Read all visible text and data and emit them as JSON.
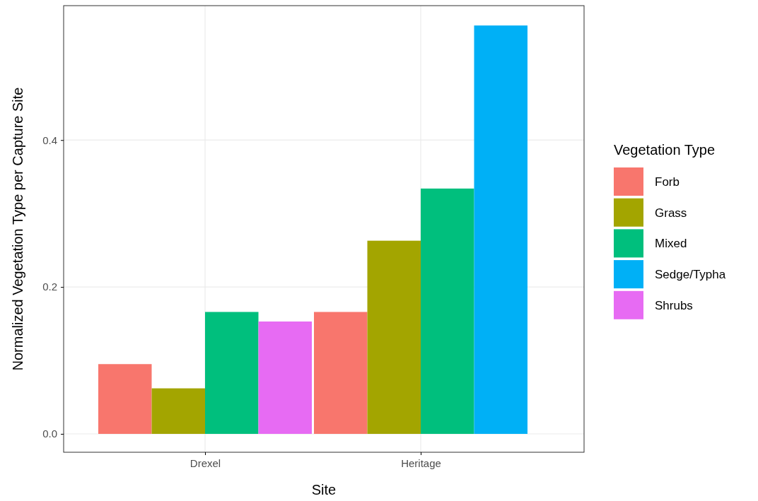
{
  "chart_data": {
    "type": "bar",
    "xlabel": "Site",
    "ylabel": "Normalized Vegetation Type per Capture Site",
    "legend_title": "Vegetation Type",
    "legend": "right",
    "grid": true,
    "categories": [
      "Drexel",
      "Heritage"
    ],
    "series": [
      {
        "name": "Forb",
        "color": "#f8766d",
        "values": [
          0.095,
          0.166
        ]
      },
      {
        "name": "Grass",
        "color": "#a3a500",
        "values": [
          0.062,
          0.263
        ]
      },
      {
        "name": "Mixed",
        "color": "#00bf7d",
        "values": [
          0.166,
          0.334
        ]
      },
      {
        "name": "Sedge/Typha",
        "color": "#00b0f6",
        "values": [
          null,
          0.556
        ]
      },
      {
        "name": "Shrubs",
        "color": "#e76bf3",
        "values": [
          0.153,
          null
        ]
      }
    ],
    "ylim": [
      -0.025,
      0.583
    ],
    "yticks": [
      {
        "value": 0,
        "label": "0.0"
      },
      {
        "value": 0.2,
        "label": "0.2"
      },
      {
        "value": 0.4,
        "label": "0.4"
      }
    ]
  }
}
